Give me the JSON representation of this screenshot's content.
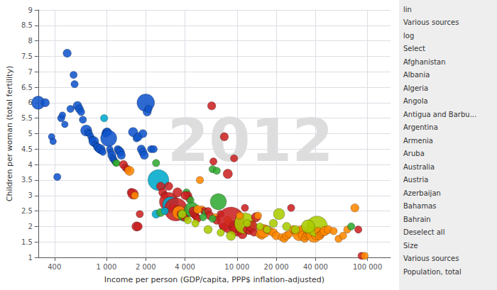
{
  "chart_data": {
    "type": "scatter",
    "xlabel": "Income per person (GDP/capita, PPP$ inflation-adjusted)",
    "ylabel": "Children per woman (total fertility)",
    "annotations": [
      "2012",
      "lin",
      "Various sources",
      "log",
      "Select",
      "Afghanistan",
      "Albania",
      "Algeria",
      "Angola",
      "Antigua and Barbu...",
      "Argentina",
      "Armenia",
      "Aruba",
      "Australia",
      "Austria",
      "Azerbaijan",
      "Bahamas",
      "Bahrain",
      "Deselect all",
      "Size",
      "Various sources",
      "Population, total"
    ],
    "log": "x",
    "grid": true,
    "xlim": [
      300,
      150000
    ],
    "ylim": [
      1,
      9
    ],
    "xticks": [
      400,
      {
        "value": 1000,
        "label": "1 000"
      },
      {
        "value": 2000,
        "label": "2 000"
      },
      {
        "value": 4000,
        "label": "4 000"
      },
      {
        "value": 10000,
        "label": "10 000"
      },
      {
        "value": 20000,
        "label": "20 000"
      },
      {
        "value": 40000,
        "label": "40 000"
      },
      {
        "value": 100000,
        "label": "100 000"
      }
    ],
    "yticks": [
      1,
      1.5,
      2,
      2.5,
      3,
      3.5,
      4,
      4.5,
      5,
      5.5,
      6,
      6.5,
      7,
      7.5,
      8,
      8.5,
      9
    ],
    "x": [
      300,
      340,
      380,
      390,
      420,
      450,
      460,
      480,
      500,
      530,
      560,
      570,
      600,
      620,
      640,
      660,
      700,
      720,
      740,
      760,
      780,
      800,
      820,
      840,
      860,
      880,
      900,
      920,
      940,
      960,
      980,
      1000,
      1020,
      1040,
      1060,
      1080,
      1100,
      1120,
      1140,
      1160,
      1180,
      1200,
      1220,
      1250,
      1280,
      1300,
      1350,
      1400,
      1450,
      1500,
      1550,
      1600,
      1650,
      1700,
      1750,
      1800,
      1850,
      1900,
      1950,
      2000,
      2050,
      2100,
      2200,
      2300,
      2400,
      2500,
      2600,
      2700,
      2800,
      2900,
      3000,
      3100,
      3200,
      3300,
      3400,
      3500,
      3600,
      3700,
      3800,
      3900,
      4000,
      4100,
      4200,
      4300,
      4400,
      4500,
      4600,
      4700,
      4800,
      4900,
      5000,
      5200,
      5400,
      5600,
      5800,
      6000,
      6200,
      6400,
      6600,
      6800,
      7000,
      7200,
      7500,
      7800,
      8000,
      8200,
      8500,
      8800,
      9000,
      9500,
      10000,
      10500,
      11000,
      11500,
      12000,
      12500,
      13000,
      13500,
      14000,
      14500,
      15000,
      15500,
      16000,
      17000,
      18000,
      19000,
      20000,
      21000,
      22000,
      23000,
      24000,
      25000,
      26000,
      27000,
      28000,
      29000,
      30000,
      31000,
      32000,
      33000,
      34000,
      35000,
      36000,
      37000,
      38000,
      39000,
      40000,
      41000,
      42000,
      43000,
      44000,
      45000,
      47000,
      50000,
      55000,
      60000,
      65000,
      70000,
      75000,
      80000,
      85000,
      90000,
      95000,
      2400,
      1600,
      1700,
      1750,
      1900,
      3000,
      3500,
      4000,
      5000,
      6500,
      7000,
      8500,
      9500,
      10500,
      11500,
      5500,
      6500,
      2600,
      3800,
      4200,
      4800,
      6000,
      7500,
      9000,
      12000,
      15000,
      17000,
      19000,
      24000,
      28000,
      35000,
      2800
    ],
    "values": [
      6,
      6,
      4.9,
      4.75,
      3.6,
      5.5,
      5.6,
      5.3,
      7.6,
      5.8,
      6.9,
      6.6,
      5.9,
      5.8,
      5.7,
      5.45,
      5.1,
      5.05,
      5,
      4.9,
      4.8,
      4.75,
      4.65,
      4.6,
      4.55,
      4.5,
      4.5,
      4.45,
      4.4,
      5.5,
      5,
      5.05,
      5.05,
      4.85,
      4.5,
      4.4,
      4.3,
      4.2,
      4.15,
      4.1,
      4.05,
      4.05,
      4.5,
      4.45,
      4.4,
      4.3,
      4,
      3.9,
      3.85,
      3.8,
      3.1,
      3.05,
      3,
      2,
      2,
      2.4,
      4.5,
      4.4,
      4.3,
      6,
      5.7,
      5.8,
      4.5,
      4.5,
      4.05,
      3.5,
      3.3,
      3.1,
      3,
      2.85,
      2.8,
      2.7,
      2.6,
      2.6,
      2.55,
      2.5,
      2.45,
      2.4,
      2.4,
      2.35,
      2.3,
      3.1,
      3,
      2.9,
      2.85,
      2.55,
      2.5,
      2.4,
      2.35,
      2.3,
      2.25,
      3.5,
      2.55,
      2.5,
      2.45,
      2.5,
      2.35,
      5.9,
      4.1,
      2.3,
      2.2,
      2.8,
      2.4,
      2,
      4.9,
      2,
      2.2,
      2.1,
      2.2,
      2,
      1.9,
      1.85,
      1.75,
      2.1,
      1.9,
      1.85,
      2,
      1.8,
      2.3,
      2.35,
      1.75,
      1.7,
      1.85,
      1.9,
      1.85,
      1.8,
      1.7,
      2.4,
      1.65,
      1.6,
      1.7,
      1.75,
      2.6,
      1.9,
      1.85,
      1.8,
      1.75,
      1.9,
      1.7,
      1.6,
      1.7,
      1.75,
      1.8,
      1.9,
      1.85,
      1.75,
      1.7,
      2,
      1.85,
      1.7,
      1.75,
      1.8,
      1.85,
      1.9,
      1.85,
      1.6,
      1.7,
      1.9,
      2,
      2.6,
      1.9,
      1.05,
      1.05,
      2.4,
      5.05,
      4.85,
      4.9,
      5,
      3.3,
      3.1,
      3,
      2.55,
      3.85,
      3.8,
      3.7,
      4.2,
      2.35,
      2.6,
      2.3,
      2.25,
      2.45,
      2.4,
      2.2,
      2.1,
      1.9,
      1.8,
      1.7,
      2.1,
      2,
      1.9,
      2.1,
      2,
      1.9,
      2,
      2.5
    ],
    "sizes": [
      180,
      70,
      45,
      45,
      55,
      55,
      45,
      45,
      70,
      55,
      55,
      55,
      80,
      70,
      55,
      55,
      130,
      45,
      45,
      45,
      55,
      100,
      45,
      45,
      70,
      55,
      90,
      45,
      45,
      55,
      55,
      70,
      70,
      270,
      45,
      45,
      70,
      55,
      45,
      45,
      45,
      45,
      55,
      70,
      70,
      70,
      70,
      55,
      55,
      90,
      70,
      110,
      55,
      90,
      70,
      55,
      70,
      70,
      70,
      320,
      70,
      55,
      55,
      55,
      55,
      450,
      70,
      70,
      55,
      55,
      360,
      270,
      55,
      70,
      550,
      90,
      180,
      55,
      55,
      130,
      70,
      55,
      70,
      55,
      55,
      220,
      70,
      70,
      55,
      55,
      55,
      55,
      55,
      55,
      55,
      55,
      70,
      70,
      55,
      55,
      70,
      270,
      55,
      55,
      70,
      70,
      70,
      55,
      720,
      110,
      180,
      55,
      90,
      450,
      70,
      55,
      130,
      55,
      90,
      55,
      70,
      55,
      180,
      70,
      55,
      70,
      70,
      130,
      55,
      55,
      70,
      55,
      55,
      70,
      70,
      55,
      180,
      70,
      90,
      55,
      70,
      70,
      70,
      90,
      55,
      270,
      70,
      450,
      55,
      70,
      55,
      55,
      90,
      70,
      55,
      55,
      55,
      55,
      55,
      70,
      55,
      55,
      55,
      70,
      90,
      55,
      70,
      70,
      70,
      90,
      70,
      70,
      55,
      55,
      90,
      55,
      55,
      55,
      55,
      55,
      70,
      70,
      55,
      55,
      70,
      55,
      90,
      55,
      55,
      55,
      70,
      70,
      70,
      180,
      55
    ],
    "colors": [
      "#1155cc",
      "#1155cc",
      "#1155cc",
      "#1155cc",
      "#1155cc",
      "#1155cc",
      "#1155cc",
      "#1155cc",
      "#1155cc",
      "#1155cc",
      "#1155cc",
      "#1155cc",
      "#1155cc",
      "#1155cc",
      "#1155cc",
      "#1155cc",
      "#1155cc",
      "#1155cc",
      "#1155cc",
      "#1155cc",
      "#1155cc",
      "#1155cc",
      "#1155cc",
      "#1155cc",
      "#1155cc",
      "#1155cc",
      "#1155cc",
      "#1155cc",
      "#1155cc",
      "#00aacc",
      "#1155cc",
      "#1155cc",
      "#1155cc",
      "#1155cc",
      "#1155cc",
      "#1155cc",
      "#1155cc",
      "#1155cc",
      "#1155cc",
      "#1155cc",
      "#33aa33",
      "#33aa33",
      "#1155cc",
      "#1155cc",
      "#1155cc",
      "#1155cc",
      "#cc2222",
      "#cc2222",
      "#cc2222",
      "#ff8800",
      "#cc2222",
      "#cc2222",
      "#ff8800",
      "#cc2222",
      "#cc2222",
      "#cc2222",
      "#1155cc",
      "#1155cc",
      "#1155cc",
      "#1155cc",
      "#1155cc",
      "#1155cc",
      "#1155cc",
      "#1155cc",
      "#33aa33",
      "#00aacc",
      "#cc2222",
      "#cc2222",
      "#cc2222",
      "#ff8800",
      "#cc2222",
      "#00aacc",
      "#cc2222",
      "#cc2222",
      "#cc2222",
      "#cc2222",
      "#ff8800",
      "#cc2222",
      "#cc2222",
      "#33aa33",
      "#cc2222",
      "#33aa33",
      "#cc2222",
      "#cc2222",
      "#33aa33",
      "#33aa33",
      "#cc2222",
      "#cc2222",
      "#cc2222",
      "#cc2222",
      "#cc2222",
      "#ff8800",
      "#ff8800",
      "#cc2222",
      "#33aa33",
      "#cc2222",
      "#cc2222",
      "#cc2222",
      "#cc2222",
      "#ff8800",
      "#cc2222",
      "#33aa33",
      "#cc2222",
      "#cc2222",
      "#cc2222",
      "#cc2222",
      "#ff8800",
      "#ff8800",
      "#cc2222",
      "#cc2222",
      "#cc2222",
      "#cc2222",
      "#cc2222",
      "#aacc00",
      "#cc2222",
      "#cc2222",
      "#cc2222",
      "#cc2222",
      "#cc2222",
      "#ff8800",
      "#ff8800",
      "#ff8800",
      "#ff8800",
      "#ff8800",
      "#ff8800",
      "#ff8800",
      "#ff8800",
      "#aacc00",
      "#ff8800",
      "#ff8800",
      "#ff8800",
      "#ff8800",
      "#cc2222",
      "#ff8800",
      "#ff8800",
      "#ff8800",
      "#ff8800",
      "#ff8800",
      "#ff8800",
      "#ff8800",
      "#ff8800",
      "#ff8800",
      "#ff8800",
      "#ff8800",
      "#ff8800",
      "#ff8800",
      "#ff8800",
      "#aacc00",
      "#ff8800",
      "#ff8800",
      "#ff8800",
      "#ff8800",
      "#ff8800",
      "#ff8800",
      "#ff8800",
      "#ff8800",
      "#ff8800",
      "#ff8800",
      "#33aa33",
      "#ff8800",
      "#cc2222",
      "#cc2222",
      "#ff8800",
      "#00aacc",
      "#1155cc",
      "#1155cc",
      "#1155cc",
      "#1155cc",
      "#cc2222",
      "#cc2222",
      "#cc2222",
      "#ff8800",
      "#33aa33",
      "#33aa33",
      "#cc2222",
      "#cc2222",
      "#ff8800",
      "#cc2222",
      "#33aa33",
      "#33aa33",
      "#33aa33",
      "#aacc00",
      "#aacc00",
      "#aacc00",
      "#aacc00",
      "#aacc00",
      "#aacc00",
      "#aacc00",
      "#aacc00",
      "#aacc00",
      "#aacc00",
      "#aacc00",
      "#aacc00",
      "#aacc00",
      "#00aacc"
    ]
  }
}
